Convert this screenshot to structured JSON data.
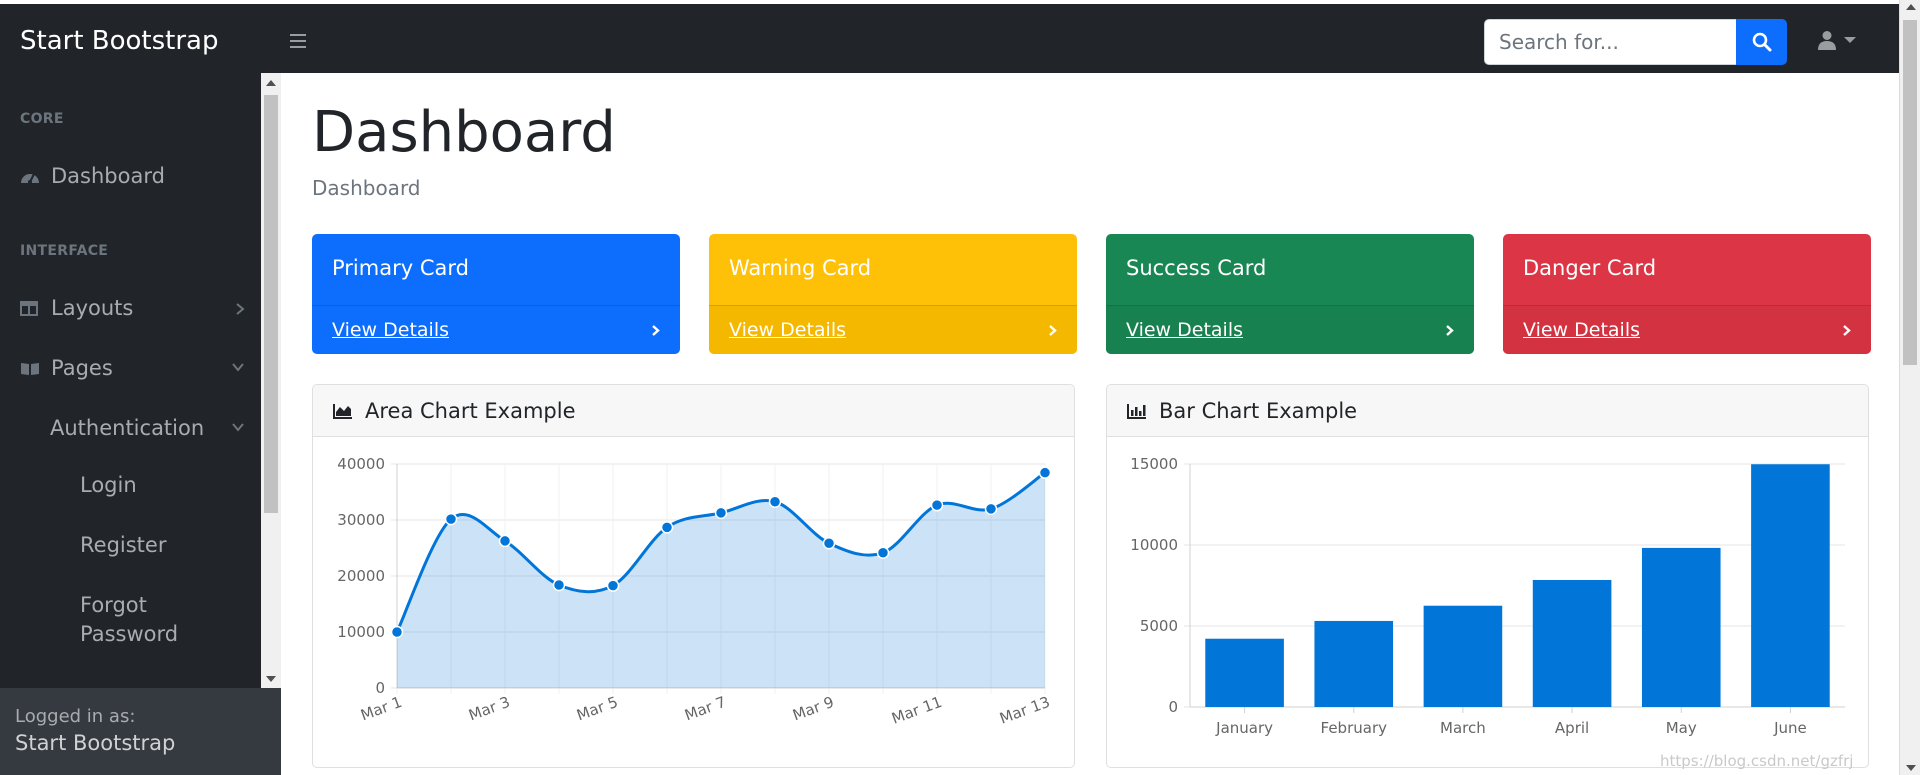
{
  "navbar": {
    "brand": "Start Bootstrap",
    "search_placeholder": "Search for..."
  },
  "sidebar": {
    "headings": {
      "core": "CORE",
      "interface": "INTERFACE"
    },
    "items": {
      "dashboard": "Dashboard",
      "layouts": "Layouts",
      "pages": "Pages",
      "authentication": "Authentication",
      "login": "Login",
      "register": "Register",
      "forgot_line1": "Forgot",
      "forgot_line2": "Password"
    },
    "footer": {
      "label": "Logged in as:",
      "name": "Start Bootstrap"
    }
  },
  "main": {
    "title": "Dashboard",
    "breadcrumb": "Dashboard",
    "cards": [
      {
        "title": "Primary Card",
        "link": "View Details",
        "color": "#0d6efd"
      },
      {
        "title": "Warning Card",
        "link": "View Details",
        "color": "#ffc107"
      },
      {
        "title": "Success Card",
        "link": "View Details",
        "color": "#198754"
      },
      {
        "title": "Danger Card",
        "link": "View Details",
        "color": "#dc3545"
      }
    ],
    "area_title": "Area Chart Example",
    "bar_title": "Bar Chart Example"
  },
  "chart_data": [
    {
      "type": "area",
      "title": "Area Chart Example",
      "x": [
        "Mar 1",
        "Mar 2",
        "Mar 3",
        "Mar 4",
        "Mar 5",
        "Mar 6",
        "Mar 7",
        "Mar 8",
        "Mar 9",
        "Mar 10",
        "Mar 11",
        "Mar 12",
        "Mar 13"
      ],
      "x_tick_labels": [
        "Mar 1",
        "Mar 3",
        "Mar 5",
        "Mar 7",
        "Mar 9",
        "Mar 11",
        "Mar 13"
      ],
      "values": [
        10000,
        30162,
        26263,
        18394,
        18287,
        28682,
        31274,
        33259,
        25849,
        24159,
        32651,
        31984,
        38451
      ],
      "ylim": [
        0,
        40000
      ],
      "y_ticks": [
        0,
        10000,
        20000,
        30000,
        40000
      ],
      "color": "#0275d8",
      "fill": "rgba(2,117,216,0.2)",
      "grid": true
    },
    {
      "type": "bar",
      "title": "Bar Chart Example",
      "categories": [
        "January",
        "February",
        "March",
        "April",
        "May",
        "June"
      ],
      "values": [
        4215,
        5312,
        6251,
        7841,
        9821,
        14984
      ],
      "ylim": [
        0,
        15000
      ],
      "y_ticks": [
        0,
        5000,
        10000,
        15000
      ],
      "color": "#0275d8",
      "grid": true
    }
  ],
  "watermark": "https://blog.csdn.net/gzfrj"
}
